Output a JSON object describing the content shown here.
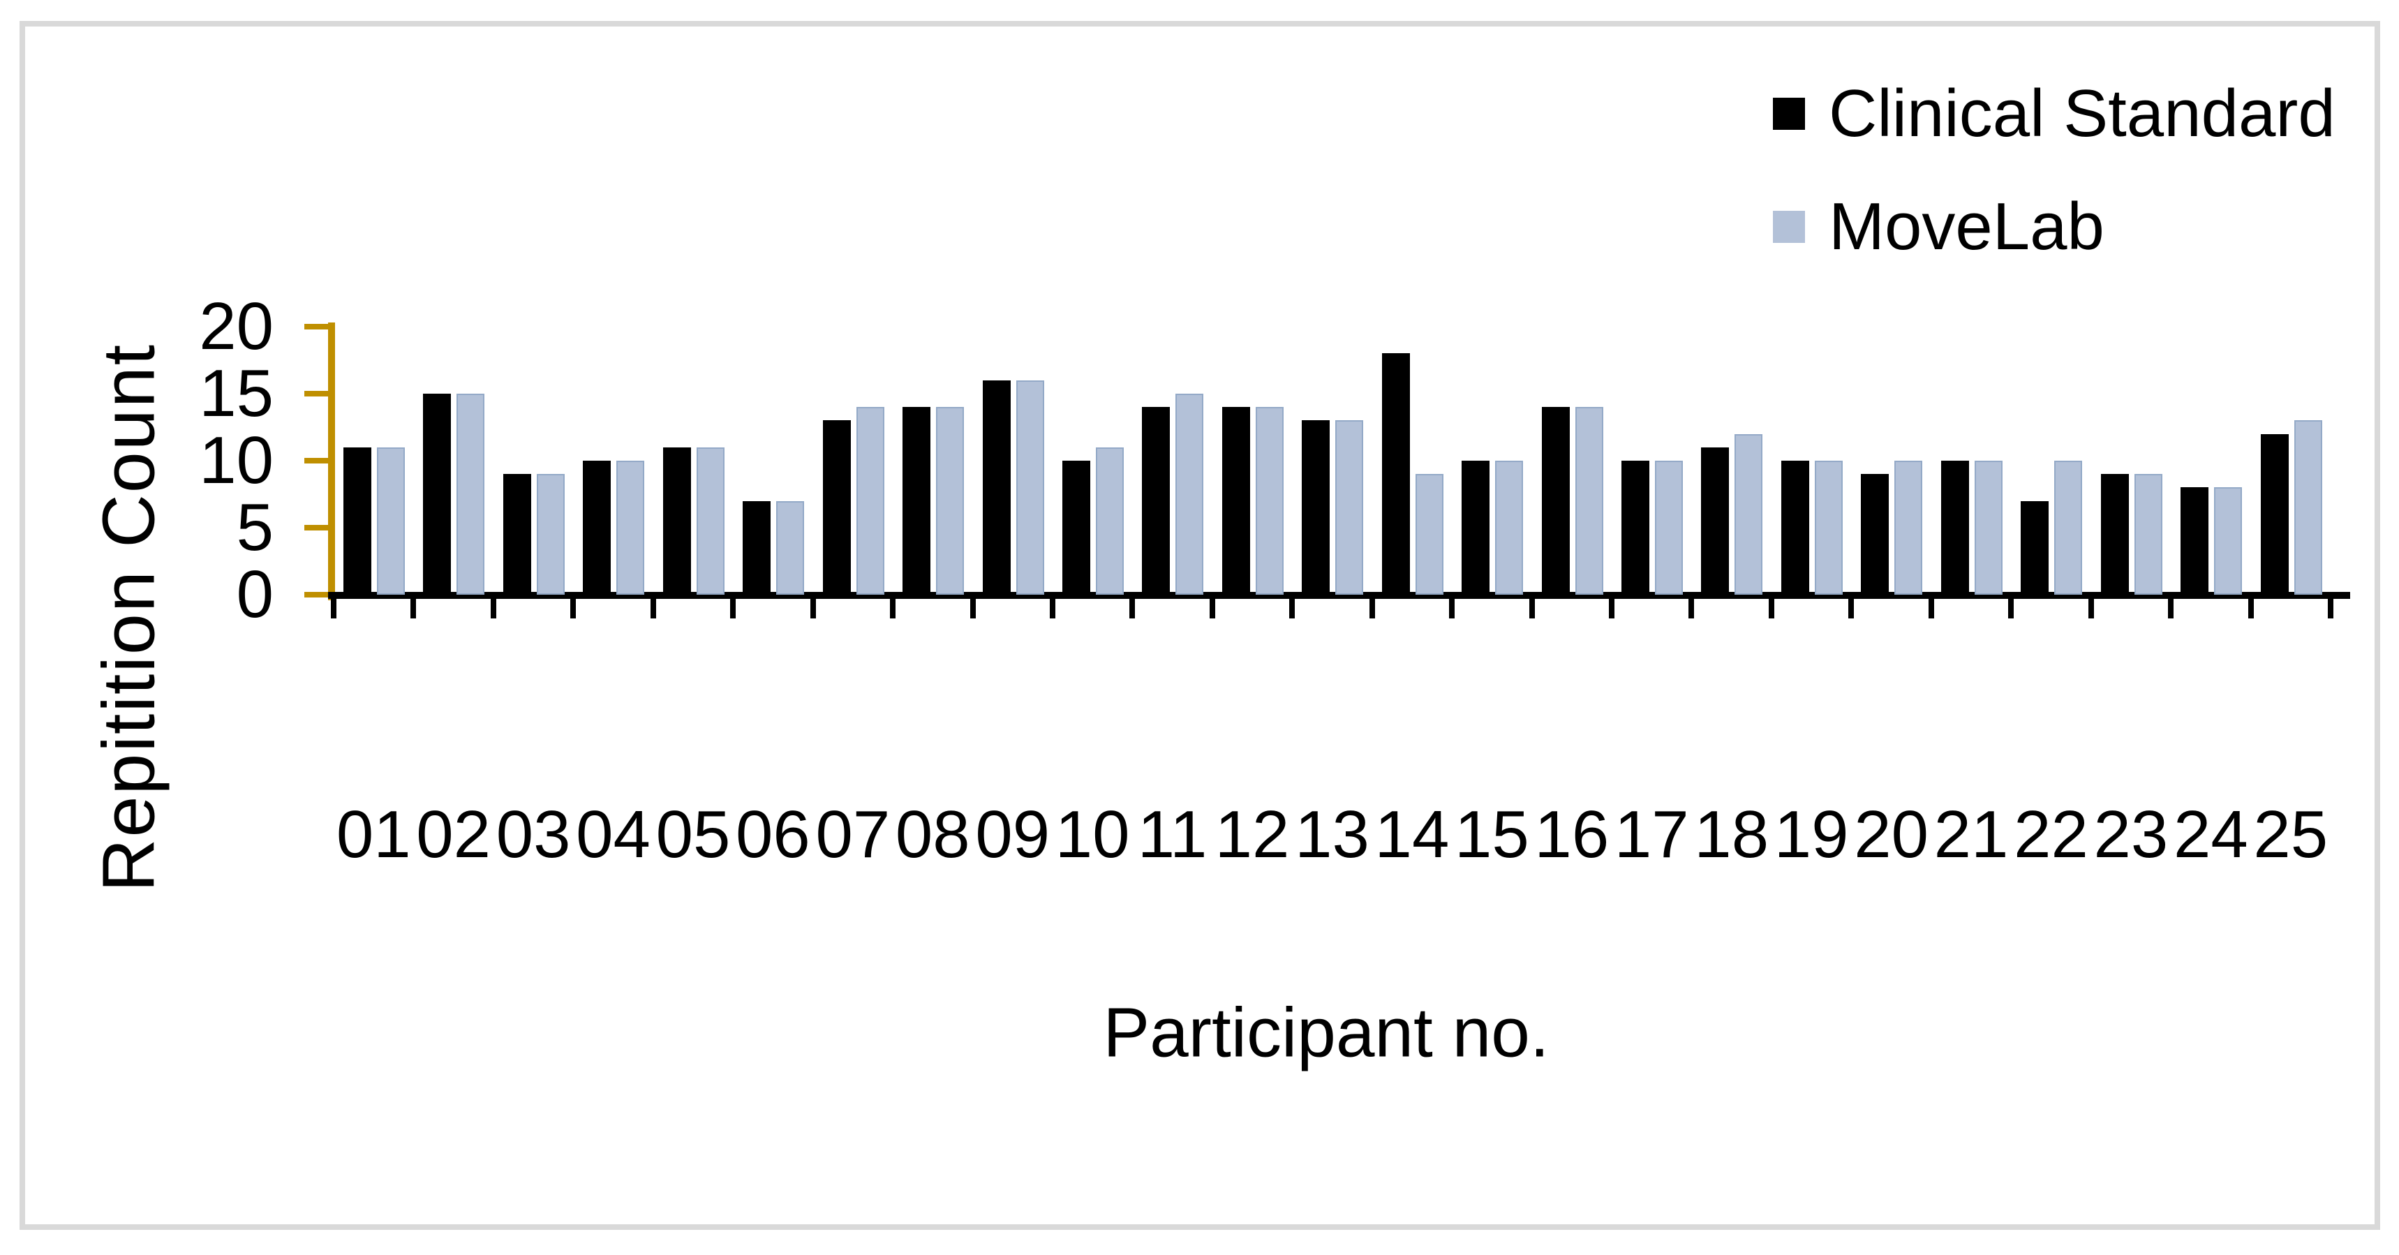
{
  "figure": {
    "y_axis_title": "Repitition Count",
    "x_axis_title": "Participant no.",
    "frame_border_color": "#d9d9d9",
    "y_axis_color": "#BF8F00",
    "x_axis_color": "#000000"
  },
  "legend": {
    "items": [
      {
        "label": "Clinical Standard",
        "color": "#000000"
      },
      {
        "label": "MoveLab",
        "color": "#b3c1d8"
      }
    ]
  },
  "chart_data": {
    "type": "bar",
    "title": "",
    "xlabel": "Participant no.",
    "ylabel": "Repitition Count",
    "categories": [
      "01",
      "02",
      "03",
      "04",
      "05",
      "06",
      "07",
      "08",
      "09",
      "10",
      "11",
      "12",
      "13",
      "14",
      "15",
      "16",
      "17",
      "18",
      "19",
      "20",
      "21",
      "22",
      "23",
      "24",
      "25"
    ],
    "series": [
      {
        "name": "Clinical Standard",
        "color": "#000000",
        "values": [
          11,
          15,
          9,
          10,
          11,
          7,
          13,
          14,
          16,
          10,
          14,
          14,
          13,
          18,
          10,
          14,
          10,
          11,
          10,
          9,
          10,
          7,
          9,
          8,
          12
        ]
      },
      {
        "name": "MoveLab",
        "color": "#b3c1d8",
        "values": [
          11,
          15,
          9,
          10,
          11,
          7,
          14,
          14,
          16,
          11,
          15,
          14,
          13,
          9,
          10,
          14,
          10,
          12,
          10,
          10,
          10,
          10,
          9,
          8,
          13
        ]
      }
    ],
    "ylim": [
      0,
      20
    ],
    "yticks": [
      0,
      5,
      10,
      15,
      20
    ],
    "grid": false,
    "legend_position": "top-right"
  }
}
